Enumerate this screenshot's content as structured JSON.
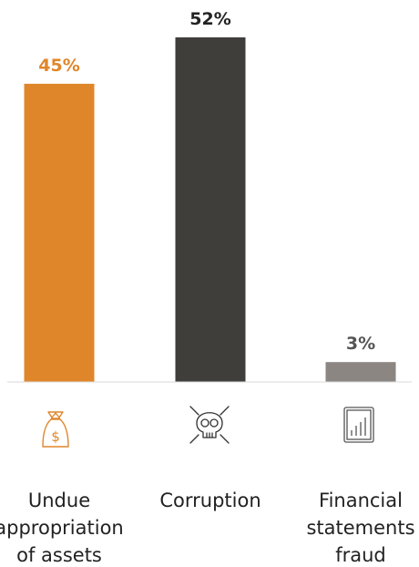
{
  "chart_data": {
    "type": "bar",
    "categories": [
      [
        "Undue",
        "appropriation",
        "of assets"
      ],
      [
        "Corruption"
      ],
      [
        "Financial",
        "statements",
        "fraud"
      ]
    ],
    "values": [
      45,
      52,
      3
    ],
    "value_labels": [
      "45%",
      "52%",
      "3%"
    ],
    "colors": [
      "#E0862A",
      "#403E3B",
      "#8C8682"
    ],
    "label_colors": [
      "#E0862A",
      "#222222",
      "#555555"
    ],
    "icons": [
      "money-bag-icon",
      "skull-crossbones-icon",
      "bar-chart-document-icon"
    ],
    "ylim": [
      0,
      52
    ],
    "grid": false,
    "legend": "none"
  }
}
